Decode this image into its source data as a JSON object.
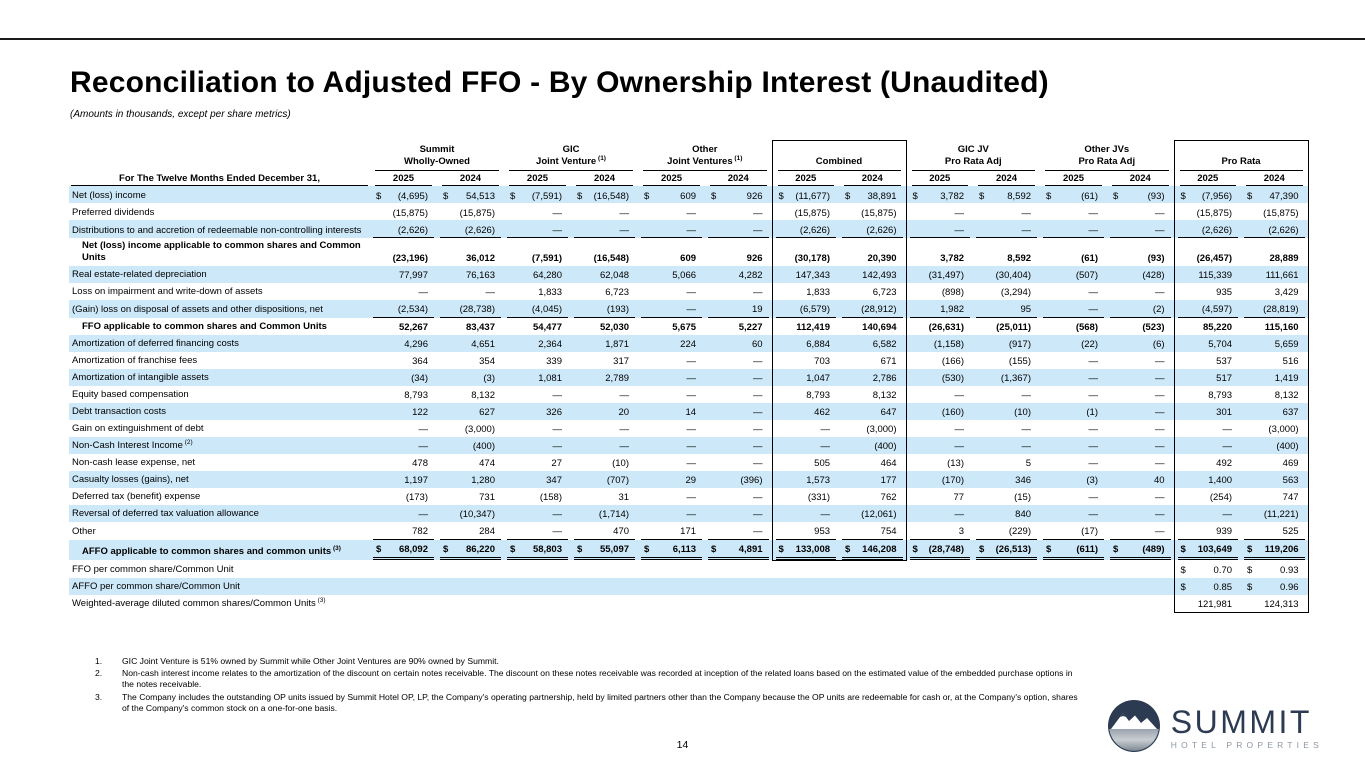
{
  "page": {
    "title": "Reconciliation to Adjusted FFO - By Ownership Interest (Unaudited)",
    "subtitle": "(Amounts in thousands, except per share metrics)",
    "page_number": "14"
  },
  "logo": {
    "name": "SUMMIT",
    "tagline": "HOTEL PROPERTIES"
  },
  "colors": {
    "row_shade": "#cde8f8",
    "logo_navy": "#2c3b52",
    "logo_gray": "#8d97a3"
  },
  "table": {
    "row_header_label": "For The Twelve Months Ended December 31,",
    "years": [
      "2025",
      "2024"
    ],
    "groups": [
      {
        "line1": "Summit",
        "line2": "Wholly-Owned",
        "sup": "",
        "boxed": false
      },
      {
        "line1": "GIC",
        "line2": "Joint Venture",
        "sup": "1",
        "boxed": false
      },
      {
        "line1": "Other",
        "line2": "Joint Ventures",
        "sup": "1",
        "boxed": false
      },
      {
        "line1": "",
        "line2": "Combined",
        "sup": "",
        "boxed": true,
        "box_end_row": 20
      },
      {
        "line1": "GIC JV",
        "line2": "Pro Rata Adj",
        "sup": "",
        "boxed": false
      },
      {
        "line1": "Other JVs",
        "line2": "Pro Rata Adj",
        "sup": "",
        "boxed": false
      },
      {
        "line1": "",
        "line2": "Pro Rata",
        "sup": "",
        "boxed": true,
        "box_end_row": 23
      }
    ],
    "rows": [
      {
        "label": "Net (loss) income",
        "sup": "",
        "shade": true,
        "bold": false,
        "indent": false,
        "dollar": "all",
        "rule": "none",
        "values": [
          "(4,695)",
          "54,513",
          "(7,591)",
          "(16,548)",
          "609",
          "926",
          "(11,677)",
          "38,891",
          "3,782",
          "8,592",
          "(61)",
          "(93)",
          "(7,956)",
          "47,390"
        ]
      },
      {
        "label": "Preferred dividends",
        "sup": "",
        "shade": false,
        "bold": false,
        "indent": false,
        "dollar": "none",
        "rule": "none",
        "values": [
          "(15,875)",
          "(15,875)",
          "—",
          "—",
          "—",
          "—",
          "(15,875)",
          "(15,875)",
          "—",
          "—",
          "—",
          "—",
          "(15,875)",
          "(15,875)"
        ]
      },
      {
        "label": "Distributions to and accretion of redeemable non-controlling interests",
        "sup": "",
        "shade": true,
        "bold": false,
        "indent": false,
        "dollar": "none",
        "rule": "single",
        "values": [
          "(2,626)",
          "(2,626)",
          "—",
          "—",
          "—",
          "—",
          "(2,626)",
          "(2,626)",
          "—",
          "—",
          "—",
          "—",
          "(2,626)",
          "(2,626)"
        ]
      },
      {
        "label": "Net (loss) income applicable to common shares and Common Units",
        "sup": "",
        "shade": false,
        "bold": true,
        "indent": true,
        "dollar": "none",
        "rule": "none",
        "values": [
          "(23,196)",
          "36,012",
          "(7,591)",
          "(16,548)",
          "609",
          "926",
          "(30,178)",
          "20,390",
          "3,782",
          "8,592",
          "(61)",
          "(93)",
          "(26,457)",
          "28,889"
        ]
      },
      {
        "label": "Real estate-related depreciation",
        "sup": "",
        "shade": true,
        "bold": false,
        "indent": false,
        "dollar": "none",
        "rule": "none",
        "values": [
          "77,997",
          "76,163",
          "64,280",
          "62,048",
          "5,066",
          "4,282",
          "147,343",
          "142,493",
          "(31,497)",
          "(30,404)",
          "(507)",
          "(428)",
          "115,339",
          "111,661"
        ]
      },
      {
        "label": "Loss on impairment and write-down of assets",
        "sup": "",
        "shade": false,
        "bold": false,
        "indent": false,
        "dollar": "none",
        "rule": "none",
        "values": [
          "—",
          "—",
          "1,833",
          "6,723",
          "—",
          "—",
          "1,833",
          "6,723",
          "(898)",
          "(3,294)",
          "—",
          "—",
          "935",
          "3,429"
        ]
      },
      {
        "label": "(Gain) loss on disposal of assets and other dispositions, net",
        "sup": "",
        "shade": true,
        "bold": false,
        "indent": false,
        "dollar": "none",
        "rule": "single",
        "values": [
          "(2,534)",
          "(28,738)",
          "(4,045)",
          "(193)",
          "—",
          "19",
          "(6,579)",
          "(28,912)",
          "1,982",
          "95",
          "—",
          "(2)",
          "(4,597)",
          "(28,819)"
        ]
      },
      {
        "label": "FFO applicable to common shares and Common Units",
        "sup": "",
        "shade": false,
        "bold": true,
        "indent": true,
        "dollar": "none",
        "rule": "none",
        "values": [
          "52,267",
          "83,437",
          "54,477",
          "52,030",
          "5,675",
          "5,227",
          "112,419",
          "140,694",
          "(26,631)",
          "(25,011)",
          "(568)",
          "(523)",
          "85,220",
          "115,160"
        ]
      },
      {
        "label": "Amortization of deferred financing costs",
        "sup": "",
        "shade": true,
        "bold": false,
        "indent": false,
        "dollar": "none",
        "rule": "none",
        "values": [
          "4,296",
          "4,651",
          "2,364",
          "1,871",
          "224",
          "60",
          "6,884",
          "6,582",
          "(1,158)",
          "(917)",
          "(22)",
          "(6)",
          "5,704",
          "5,659"
        ]
      },
      {
        "label": "Amortization of franchise fees",
        "sup": "",
        "shade": false,
        "bold": false,
        "indent": false,
        "dollar": "none",
        "rule": "none",
        "values": [
          "364",
          "354",
          "339",
          "317",
          "—",
          "—",
          "703",
          "671",
          "(166)",
          "(155)",
          "—",
          "—",
          "537",
          "516"
        ]
      },
      {
        "label": "Amortization of intangible assets",
        "sup": "",
        "shade": true,
        "bold": false,
        "indent": false,
        "dollar": "none",
        "rule": "none",
        "values": [
          "(34)",
          "(3)",
          "1,081",
          "2,789",
          "—",
          "—",
          "1,047",
          "2,786",
          "(530)",
          "(1,367)",
          "—",
          "—",
          "517",
          "1,419"
        ]
      },
      {
        "label": "Equity based compensation",
        "sup": "",
        "shade": false,
        "bold": false,
        "indent": false,
        "dollar": "none",
        "rule": "none",
        "values": [
          "8,793",
          "8,132",
          "—",
          "—",
          "—",
          "—",
          "8,793",
          "8,132",
          "—",
          "—",
          "—",
          "—",
          "8,793",
          "8,132"
        ]
      },
      {
        "label": "Debt transaction costs",
        "sup": "",
        "shade": true,
        "bold": false,
        "indent": false,
        "dollar": "none",
        "rule": "none",
        "values": [
          "122",
          "627",
          "326",
          "20",
          "14",
          "—",
          "462",
          "647",
          "(160)",
          "(10)",
          "(1)",
          "—",
          "301",
          "637"
        ]
      },
      {
        "label": "Gain on extinguishment of debt",
        "sup": "",
        "shade": false,
        "bold": false,
        "indent": false,
        "dollar": "none",
        "rule": "none",
        "values": [
          "—",
          "(3,000)",
          "—",
          "—",
          "—",
          "—",
          "—",
          "(3,000)",
          "—",
          "—",
          "—",
          "—",
          "—",
          "(3,000)"
        ]
      },
      {
        "label": "Non-Cash Interest Income",
        "sup": "2",
        "shade": true,
        "bold": false,
        "indent": false,
        "dollar": "none",
        "rule": "none",
        "values": [
          "—",
          "(400)",
          "—",
          "—",
          "—",
          "—",
          "—",
          "(400)",
          "—",
          "—",
          "—",
          "—",
          "—",
          "(400)"
        ]
      },
      {
        "label": "Non-cash lease expense, net",
        "sup": "",
        "shade": false,
        "bold": false,
        "indent": false,
        "dollar": "none",
        "rule": "none",
        "values": [
          "478",
          "474",
          "27",
          "(10)",
          "—",
          "—",
          "505",
          "464",
          "(13)",
          "5",
          "—",
          "—",
          "492",
          "469"
        ]
      },
      {
        "label": "Casualty losses (gains), net",
        "sup": "",
        "shade": true,
        "bold": false,
        "indent": false,
        "dollar": "none",
        "rule": "none",
        "values": [
          "1,197",
          "1,280",
          "347",
          "(707)",
          "29",
          "(396)",
          "1,573",
          "177",
          "(170)",
          "346",
          "(3)",
          "40",
          "1,400",
          "563"
        ]
      },
      {
        "label": "Deferred tax (benefit) expense",
        "sup": "",
        "shade": false,
        "bold": false,
        "indent": false,
        "dollar": "none",
        "rule": "none",
        "values": [
          "(173)",
          "731",
          "(158)",
          "31",
          "—",
          "—",
          "(331)",
          "762",
          "77",
          "(15)",
          "—",
          "—",
          "(254)",
          "747"
        ]
      },
      {
        "label": "Reversal of deferred tax valuation allowance",
        "sup": "",
        "shade": true,
        "bold": false,
        "indent": false,
        "dollar": "none",
        "rule": "none",
        "values": [
          "—",
          "(10,347)",
          "—",
          "(1,714)",
          "—",
          "—",
          "—",
          "(12,061)",
          "—",
          "840",
          "—",
          "—",
          "—",
          "(11,221)"
        ]
      },
      {
        "label": "Other",
        "sup": "",
        "shade": false,
        "bold": false,
        "indent": false,
        "dollar": "none",
        "rule": "single",
        "values": [
          "782",
          "284",
          "—",
          "470",
          "171",
          "—",
          "953",
          "754",
          "3",
          "(229)",
          "(17)",
          "—",
          "939",
          "525"
        ]
      },
      {
        "label": "AFFO applicable to common shares and common units",
        "sup": "3",
        "shade": true,
        "bold": true,
        "indent": true,
        "dollar": "all",
        "rule": "double",
        "values": [
          "68,092",
          "86,220",
          "58,803",
          "55,097",
          "6,113",
          "4,891",
          "133,008",
          "146,208",
          "(28,748)",
          "(26,513)",
          "(611)",
          "(489)",
          "103,649",
          "119,206"
        ]
      },
      {
        "label": "FFO per common share/Common Unit",
        "sup": "",
        "shade": false,
        "bold": false,
        "indent": false,
        "dollar": "prorata",
        "rule": "none",
        "values": [
          "",
          "",
          "",
          "",
          "",
          "",
          "",
          "",
          "",
          "",
          "",
          "",
          "0.70",
          "0.93"
        ]
      },
      {
        "label": "AFFO per common share/Common Unit",
        "sup": "",
        "shade": true,
        "bold": false,
        "indent": false,
        "dollar": "prorata",
        "rule": "none",
        "values": [
          "",
          "",
          "",
          "",
          "",
          "",
          "",
          "",
          "",
          "",
          "",
          "",
          "0.85",
          "0.96"
        ]
      },
      {
        "label": "Weighted-average diluted common shares/Common Units",
        "sup": "3",
        "shade": false,
        "bold": false,
        "indent": false,
        "dollar": "none",
        "rule": "none",
        "values": [
          "",
          "",
          "",
          "",
          "",
          "",
          "",
          "",
          "",
          "",
          "",
          "",
          "121,981",
          "124,313"
        ]
      }
    ]
  },
  "footnotes": [
    {
      "num": "1.",
      "text": "GIC Joint Venture is 51% owned by Summit while Other Joint Ventures are 90% owned by Summit."
    },
    {
      "num": "2.",
      "text": "Non-cash interest income relates to the amortization of the discount on certain notes receivable. The discount on these notes receivable was recorded at inception of the related loans based on the estimated value of the embedded purchase options in the notes receivable."
    },
    {
      "num": "3.",
      "text": "The Company includes the outstanding OP units issued by Summit Hotel OP, LP, the Company's operating partnership, held by limited partners other than the Company because the OP units are redeemable for cash or, at the Company's option, shares of the Company's common stock on a one-for-one basis."
    }
  ]
}
